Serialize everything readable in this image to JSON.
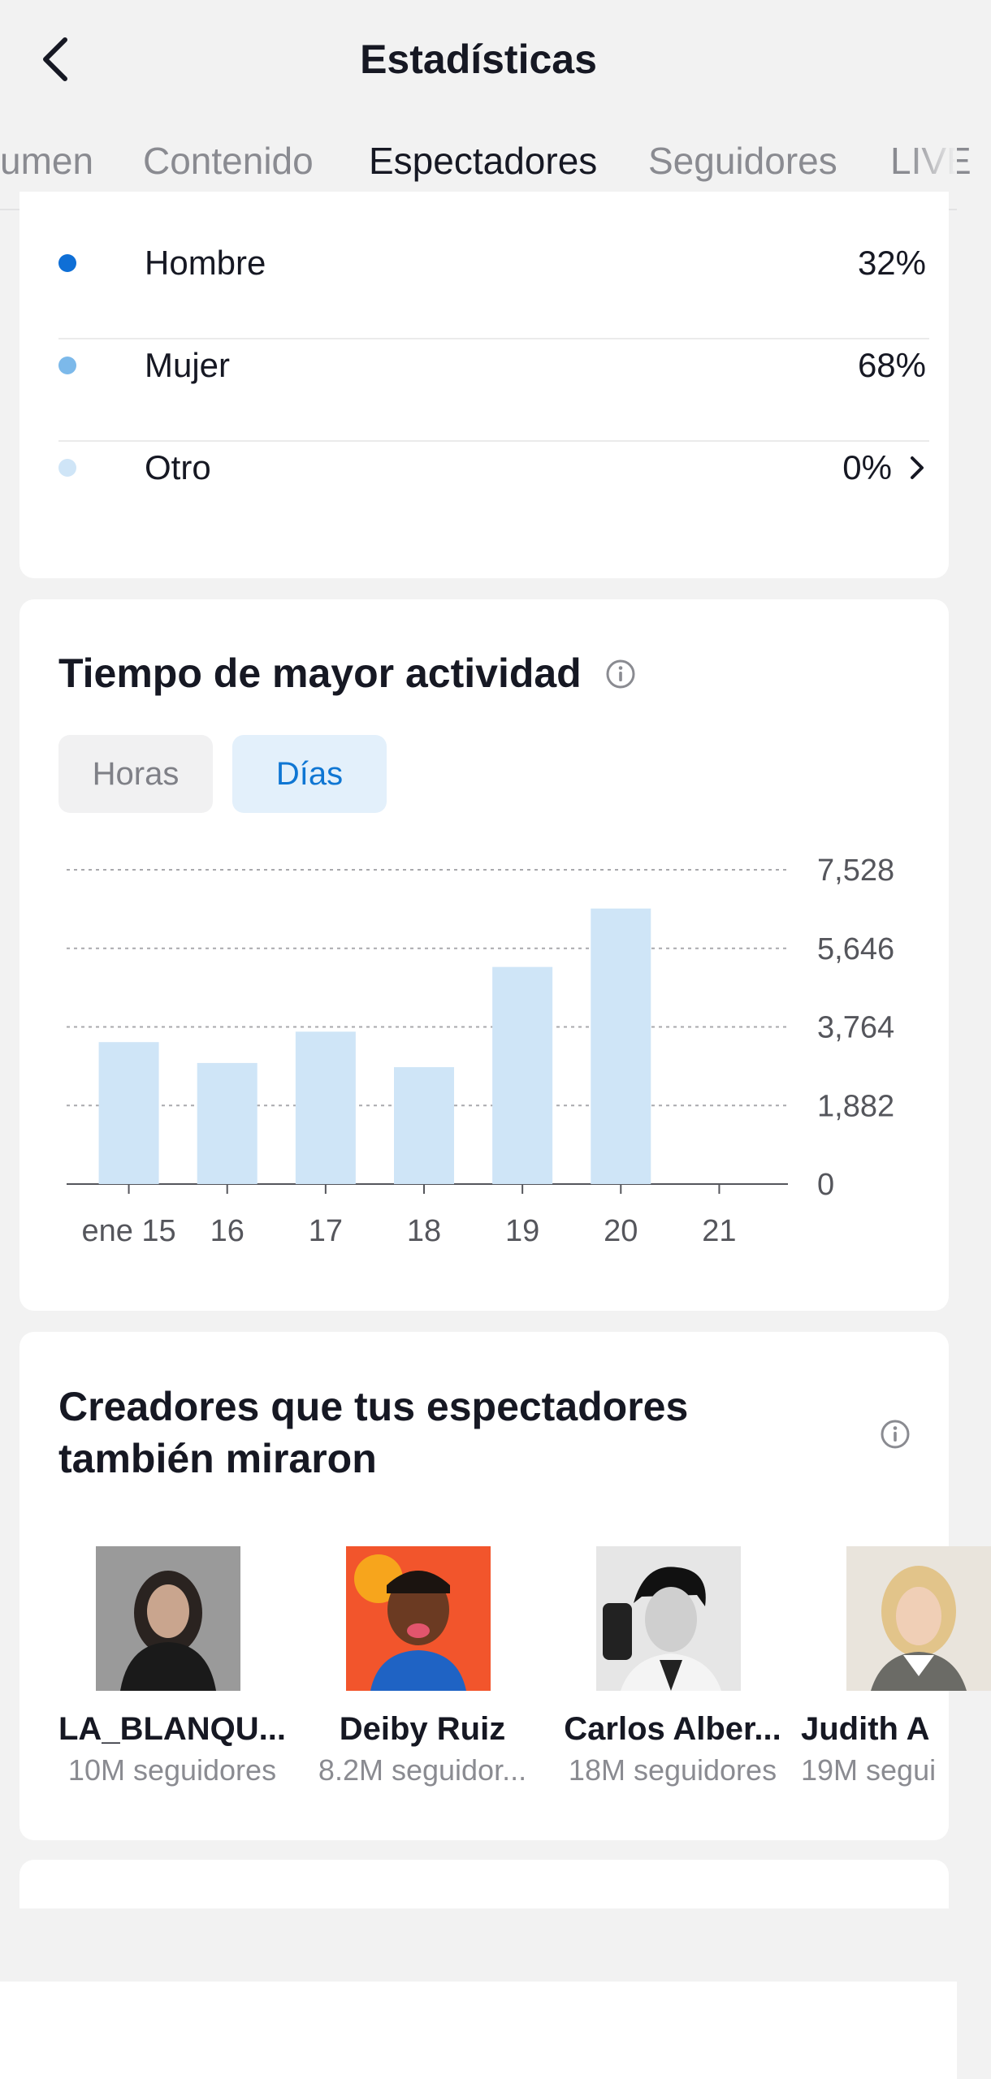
{
  "header": {
    "title": "Estadísticas",
    "tabs": [
      {
        "label": "umen",
        "active": false
      },
      {
        "label": "Contenido",
        "active": false
      },
      {
        "label": "Espectadores",
        "active": true
      },
      {
        "label": "Seguidores",
        "active": false
      },
      {
        "label": "LIVE",
        "active": false
      }
    ]
  },
  "gender": {
    "items": [
      {
        "label": "Hombre",
        "value": "32%",
        "color": "#0f6fd6"
      },
      {
        "label": "Mujer",
        "value": "68%",
        "color": "#7cb9ea"
      },
      {
        "label": "Otro",
        "value": "0%",
        "color": "#cfe5f7"
      }
    ]
  },
  "activity": {
    "title": "Tiempo de mayor actividad",
    "toggle": {
      "hours": "Horas",
      "days": "Días",
      "selected": "Días"
    }
  },
  "chart_data": {
    "type": "bar",
    "categories": [
      "ene 15",
      "16",
      "17",
      "18",
      "19",
      "20",
      "21"
    ],
    "values": [
      3400,
      2900,
      3650,
      2800,
      5200,
      6600,
      0
    ],
    "y_ticks": [
      "7,528",
      "5,646",
      "3,764",
      "1,882",
      "0"
    ],
    "ylim": [
      0,
      7528
    ],
    "bar_color": "#cfe5f7",
    "grid": true
  },
  "creators": {
    "title": "Creadores que tus espectadores también miraron",
    "items": [
      {
        "name": "LA_BLANQU...",
        "followers": "10M seguidores"
      },
      {
        "name": "Deiby Ruiz",
        "followers": "8.2M seguidor..."
      },
      {
        "name": "Carlos Alber...",
        "followers": "18M seguidores"
      },
      {
        "name": "Judith A",
        "followers": "19M segui"
      }
    ]
  }
}
